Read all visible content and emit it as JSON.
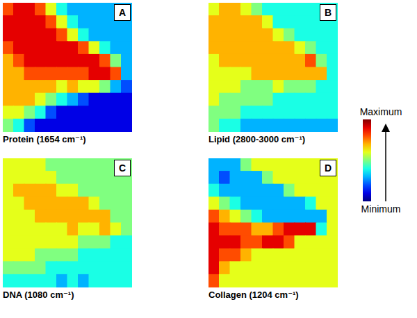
{
  "chart_data": [
    {
      "type": "heatmap",
      "title": "Protein (1654 cm⁻¹)",
      "annotation": "A",
      "tick_labels": false,
      "cells": [
        [
          8,
          9,
          9,
          8,
          6,
          4,
          3,
          3,
          3,
          3,
          3,
          3
        ],
        [
          9,
          9,
          9,
          9,
          8,
          6,
          4,
          3,
          3,
          3,
          3,
          3
        ],
        [
          9,
          9,
          9,
          9,
          9,
          8,
          6,
          4,
          3,
          3,
          3,
          3
        ],
        [
          8,
          9,
          9,
          9,
          9,
          9,
          9,
          8,
          6,
          4,
          3,
          3
        ],
        [
          7,
          8,
          9,
          9,
          9,
          9,
          9,
          9,
          9,
          8,
          5,
          3
        ],
        [
          7,
          7,
          8,
          8,
          8,
          8,
          8,
          8,
          9,
          9,
          8,
          3
        ],
        [
          7,
          7,
          7,
          7,
          7,
          6,
          7,
          6,
          6,
          5,
          3,
          2
        ],
        [
          7,
          7,
          7,
          6,
          5,
          4,
          3,
          2,
          1,
          1,
          1,
          1
        ],
        [
          6,
          6,
          5,
          4,
          2,
          1,
          1,
          1,
          1,
          1,
          1,
          1
        ],
        [
          5,
          4,
          2,
          1,
          1,
          1,
          1,
          1,
          1,
          1,
          1,
          1
        ]
      ]
    },
    {
      "type": "heatmap",
      "title": "Lipid (2800-3000 cm⁻¹)",
      "annotation": "B",
      "tick_labels": false,
      "cells": [
        [
          6,
          7,
          7,
          6,
          5,
          4,
          4,
          4,
          4,
          4,
          4,
          4
        ],
        [
          7,
          7,
          7,
          7,
          7,
          6,
          4,
          4,
          4,
          4,
          4,
          4
        ],
        [
          7,
          7,
          7,
          7,
          7,
          7,
          6,
          5,
          4,
          4,
          4,
          4
        ],
        [
          7,
          7,
          7,
          7,
          7,
          7,
          7,
          7,
          6,
          5,
          4,
          4
        ],
        [
          6,
          7,
          7,
          7,
          7,
          7,
          7,
          7,
          7,
          8,
          5,
          4
        ],
        [
          6,
          6,
          6,
          6,
          7,
          7,
          7,
          7,
          7,
          7,
          7,
          4
        ],
        [
          6,
          6,
          6,
          5,
          5,
          5,
          6,
          5,
          5,
          5,
          4,
          4
        ],
        [
          6,
          5,
          5,
          5,
          5,
          5,
          4,
          4,
          4,
          4,
          4,
          4
        ],
        [
          5,
          5,
          5,
          4,
          4,
          4,
          4,
          4,
          4,
          4,
          4,
          4
        ],
        [
          5,
          4,
          4,
          3,
          3,
          3,
          3,
          3,
          3,
          3,
          3,
          3
        ]
      ]
    },
    {
      "type": "heatmap",
      "title": "DNA (1080 cm⁻¹)",
      "annotation": "C",
      "tick_labels": false,
      "cells": [
        [
          6,
          6,
          6,
          6,
          5,
          5,
          5,
          5,
          5,
          5,
          5,
          5
        ],
        [
          6,
          6,
          6,
          6,
          6,
          5,
          5,
          5,
          5,
          5,
          5,
          5
        ],
        [
          6,
          7,
          7,
          7,
          7,
          6,
          6,
          5,
          5,
          5,
          5,
          5
        ],
        [
          6,
          6,
          7,
          7,
          7,
          7,
          7,
          7,
          6,
          5,
          5,
          5
        ],
        [
          6,
          6,
          6,
          7,
          7,
          7,
          7,
          7,
          7,
          7,
          5,
          5
        ],
        [
          6,
          6,
          6,
          6,
          6,
          6,
          7,
          6,
          6,
          7,
          6,
          5
        ],
        [
          6,
          6,
          6,
          6,
          6,
          6,
          6,
          5,
          5,
          5,
          4,
          4
        ],
        [
          6,
          6,
          6,
          5,
          5,
          5,
          5,
          4,
          4,
          4,
          4,
          4
        ],
        [
          5,
          5,
          5,
          5,
          4,
          4,
          4,
          4,
          4,
          4,
          4,
          4
        ],
        [
          4,
          4,
          4,
          4,
          4,
          3,
          4,
          3,
          4,
          4,
          4,
          4
        ]
      ]
    },
    {
      "type": "heatmap",
      "title": "Collagen (1204 cm⁻¹)",
      "annotation": "D",
      "tick_labels": false,
      "cells": [
        [
          3,
          3,
          3,
          5,
          6,
          6,
          6,
          6,
          6,
          6,
          6,
          6
        ],
        [
          3,
          2,
          3,
          3,
          3,
          5,
          6,
          6,
          6,
          6,
          6,
          6
        ],
        [
          4,
          3,
          3,
          3,
          3,
          3,
          3,
          5,
          6,
          6,
          6,
          6
        ],
        [
          6,
          5,
          4,
          3,
          3,
          3,
          3,
          3,
          3,
          4,
          6,
          6
        ],
        [
          8,
          7,
          6,
          5,
          4,
          3,
          3,
          3,
          3,
          3,
          3,
          6
        ],
        [
          9,
          8,
          8,
          8,
          7,
          7,
          8,
          9,
          9,
          9,
          4,
          6
        ],
        [
          9,
          9,
          9,
          8,
          8,
          9,
          9,
          8,
          6,
          6,
          6,
          6
        ],
        [
          9,
          8,
          8,
          7,
          6,
          6,
          6,
          6,
          6,
          6,
          6,
          6
        ],
        [
          9,
          7,
          6,
          6,
          6,
          6,
          6,
          6,
          6,
          6,
          6,
          6
        ],
        [
          8,
          6,
          6,
          6,
          6,
          6,
          6,
          6,
          6,
          6,
          6,
          6
        ]
      ]
    }
  ],
  "color_bar": {
    "range": [
      0,
      10
    ],
    "ticks": [
      {
        "value": 10,
        "label": "Maximum"
      },
      {
        "value": 0,
        "label": "Minimum"
      }
    ]
  }
}
